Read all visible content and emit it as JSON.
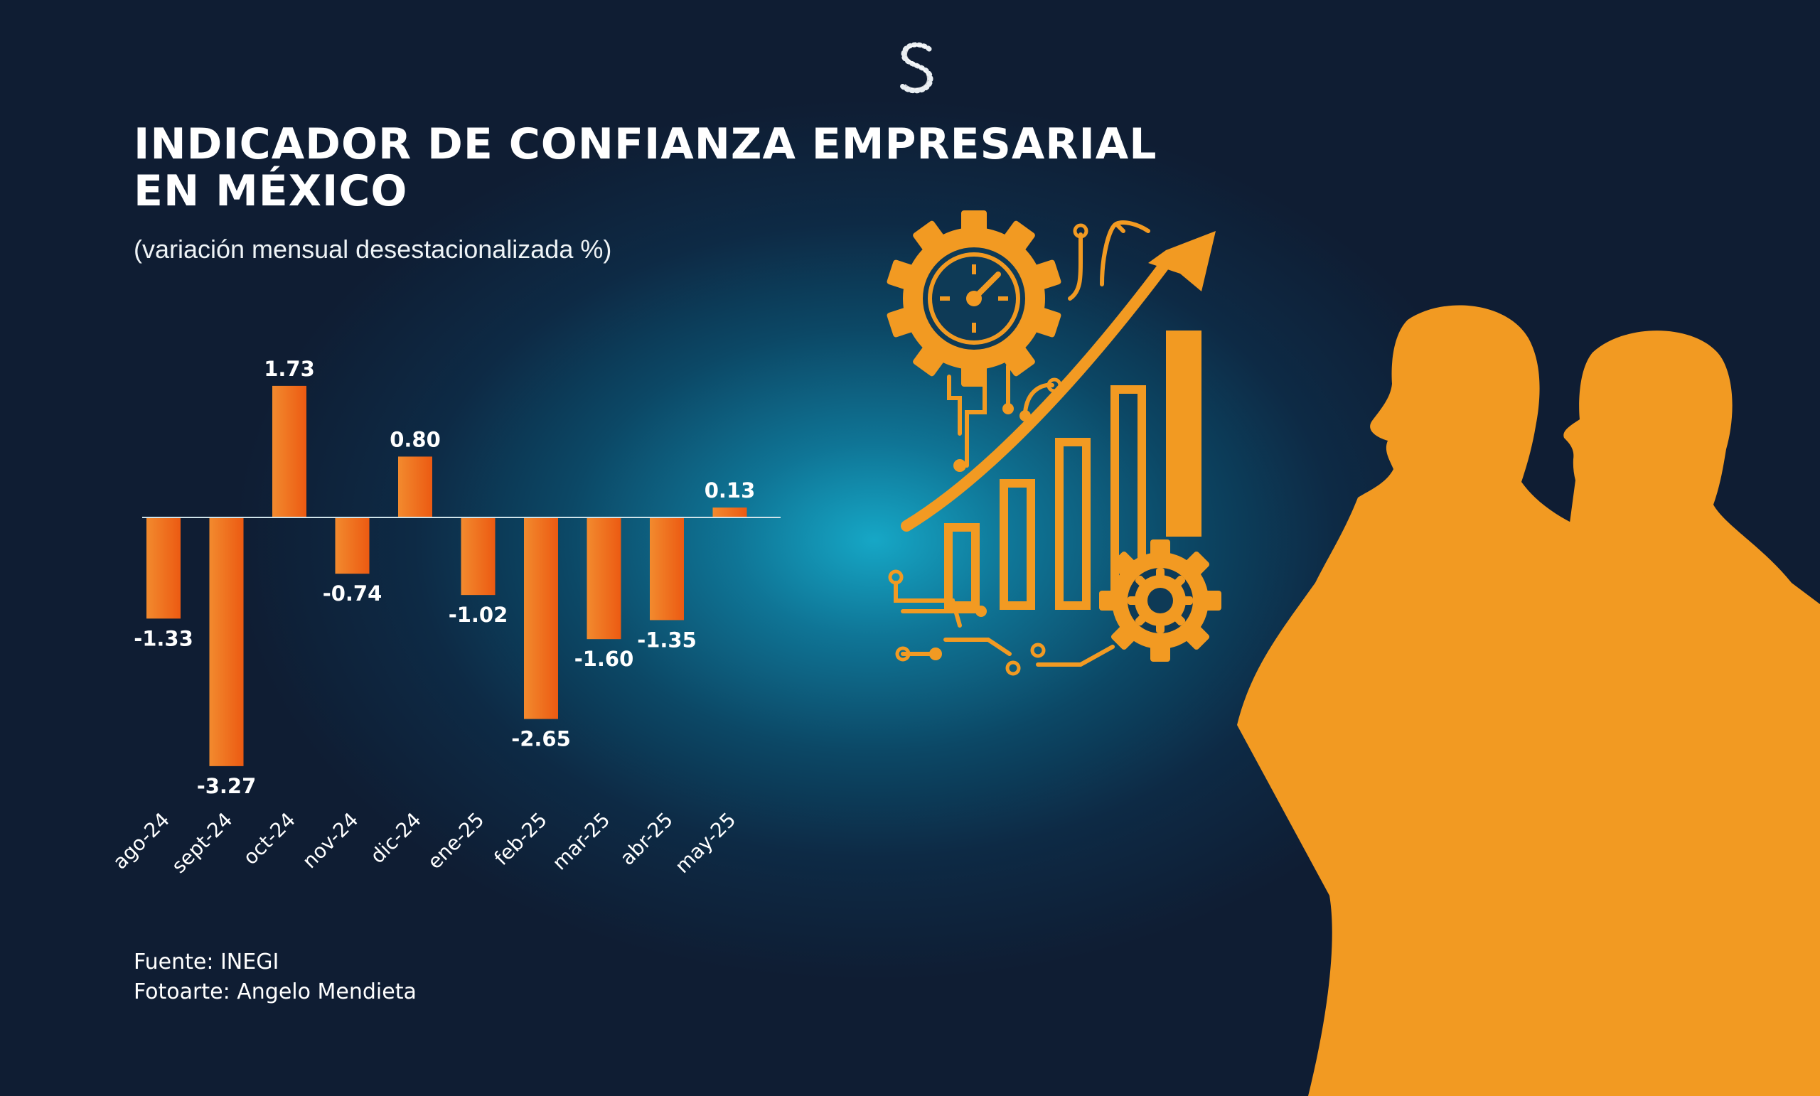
{
  "header": {
    "title": "INDICADOR DE CONFIANZA EMPRESARIAL\nEN MÉXICO",
    "subtitle": "(variación mensual desestacionalizada %)"
  },
  "chart_data": {
    "type": "bar",
    "title": "INDICADOR DE CONFIANZA EMPRESARIAL EN MÉXICO",
    "subtitle": "(variación mensual desestacionalizada %)",
    "categories": [
      "ago-24",
      "sept-24",
      "oct-24",
      "nov-24",
      "dic-24",
      "ene-25",
      "feb-25",
      "mar-25",
      "abr-25",
      "may-25"
    ],
    "values": [
      -1.33,
      -3.27,
      1.73,
      -0.74,
      0.8,
      -1.02,
      -2.65,
      -1.6,
      -1.35,
      0.13
    ],
    "value_labels": [
      "-1.33",
      "-3.27",
      "1.73",
      "-0.74",
      "0.80",
      "-1.02",
      "-2.65",
      "-1.60",
      "-1.35",
      "0.13"
    ],
    "xlabel": "",
    "ylabel": "",
    "ylim": [
      -3.27,
      1.73
    ],
    "grid": false,
    "legend": "none",
    "bar_color": "#f2651c"
  },
  "credits": {
    "source": "Fuente: INEGI",
    "photo": "Fotoarte: Angelo Mendieta"
  },
  "icons": {
    "logo": "s-dotted-logo-icon",
    "gear": "gear-clock-icon",
    "arrow": "growth-arrow-icon",
    "small_gear": "small-gear-icon",
    "circuits": "circuit-lines-icon",
    "people": "business-people-silhouette-icon"
  },
  "colors": {
    "accent_orange": "#f29a22",
    "bar_orange": "#f2651c",
    "background_dark": "#0f1d33",
    "background_glow": "#16a7c6"
  }
}
